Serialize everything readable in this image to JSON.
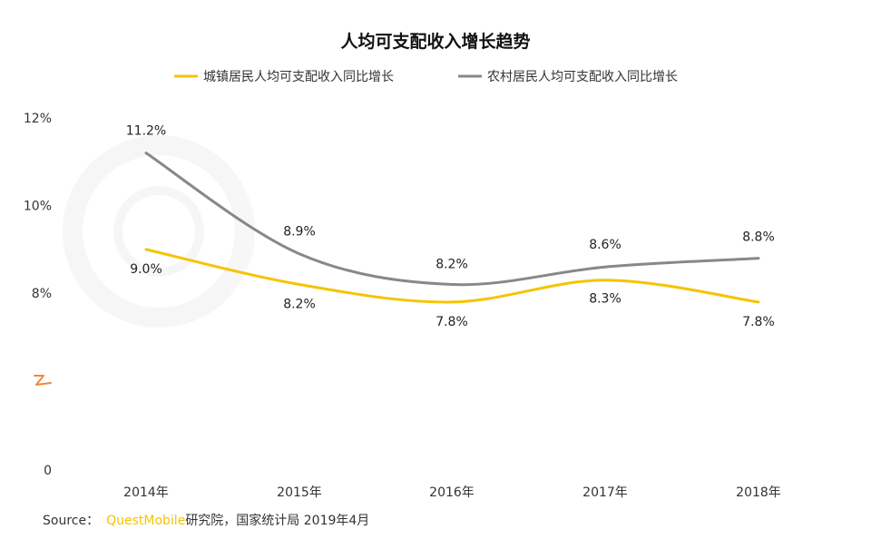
{
  "chart_data": {
    "type": "line",
    "title": "人均可支配收入增长趋势",
    "categories": [
      "2014年",
      "2015年",
      "2016年",
      "2017年",
      "2018年"
    ],
    "series": [
      {
        "name": "城镇居民人均可支配收入同比增长",
        "color": "#f5c400",
        "values": [
          9.0,
          8.2,
          7.8,
          8.3,
          7.8
        ],
        "labels": [
          "9.0%",
          "8.2%",
          "7.8%",
          "8.3%",
          "7.8%"
        ]
      },
      {
        "name": "农村居民人均可支配收入同比增长",
        "color": "#888888",
        "values": [
          11.2,
          8.9,
          8.2,
          8.6,
          8.8
        ],
        "labels": [
          "11.2%",
          "8.9%",
          "8.2%",
          "8.6%",
          "8.8%"
        ]
      }
    ],
    "y_ticks": [
      {
        "value": 12,
        "label": "12%"
      },
      {
        "value": 10,
        "label": "10%"
      },
      {
        "value": 8,
        "label": "8%"
      },
      {
        "value": 0,
        "label": "0"
      }
    ],
    "ylim": [
      0,
      12
    ],
    "axis_break": true,
    "grid": false,
    "legend": "top-center",
    "smooth": true
  },
  "source": {
    "prefix": "Source：",
    "brand": "QuestMobile",
    "rest": "研究院，国家统计局 2019年4月"
  }
}
